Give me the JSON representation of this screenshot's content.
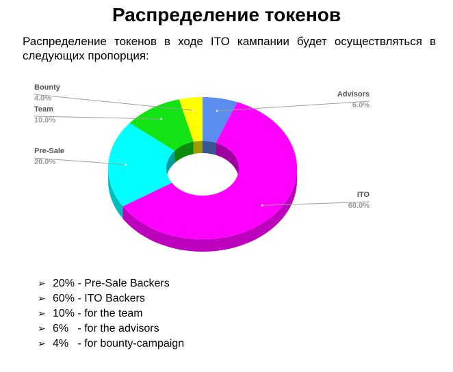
{
  "title": "Распределение токенов",
  "intro": "Распределение токенов в ходе ITO кампании будет осуществляться в следующих пропорция:",
  "chart_data": {
    "type": "pie",
    "style": "3d-donut",
    "slices": [
      {
        "name": "Advisors",
        "value": 6.0,
        "label": "6.0%",
        "color": "#5b8def"
      },
      {
        "name": "ITO",
        "value": 60.0,
        "label": "60.0%",
        "color": "#ff00ff"
      },
      {
        "name": "Pre-Sale",
        "value": 20.0,
        "label": "20.0%",
        "color": "#00ffff"
      },
      {
        "name": "Team",
        "value": 10.0,
        "label": "10.0%",
        "color": "#13e213"
      },
      {
        "name": "Bounty",
        "value": 4.0,
        "label": "4.0%",
        "color": "#ffff00"
      }
    ]
  },
  "bullets": [
    {
      "arrow": "➢",
      "text": "20% - Pre-Sale Backers"
    },
    {
      "arrow": "➢",
      "text": "60% - ITO Backers"
    },
    {
      "arrow": "➢",
      "text": "10% - for the team"
    },
    {
      "arrow": "➢",
      "text": "6%   - for the advisors"
    },
    {
      "arrow": "➢",
      "text": "4%   - for bounty-campaign"
    }
  ]
}
